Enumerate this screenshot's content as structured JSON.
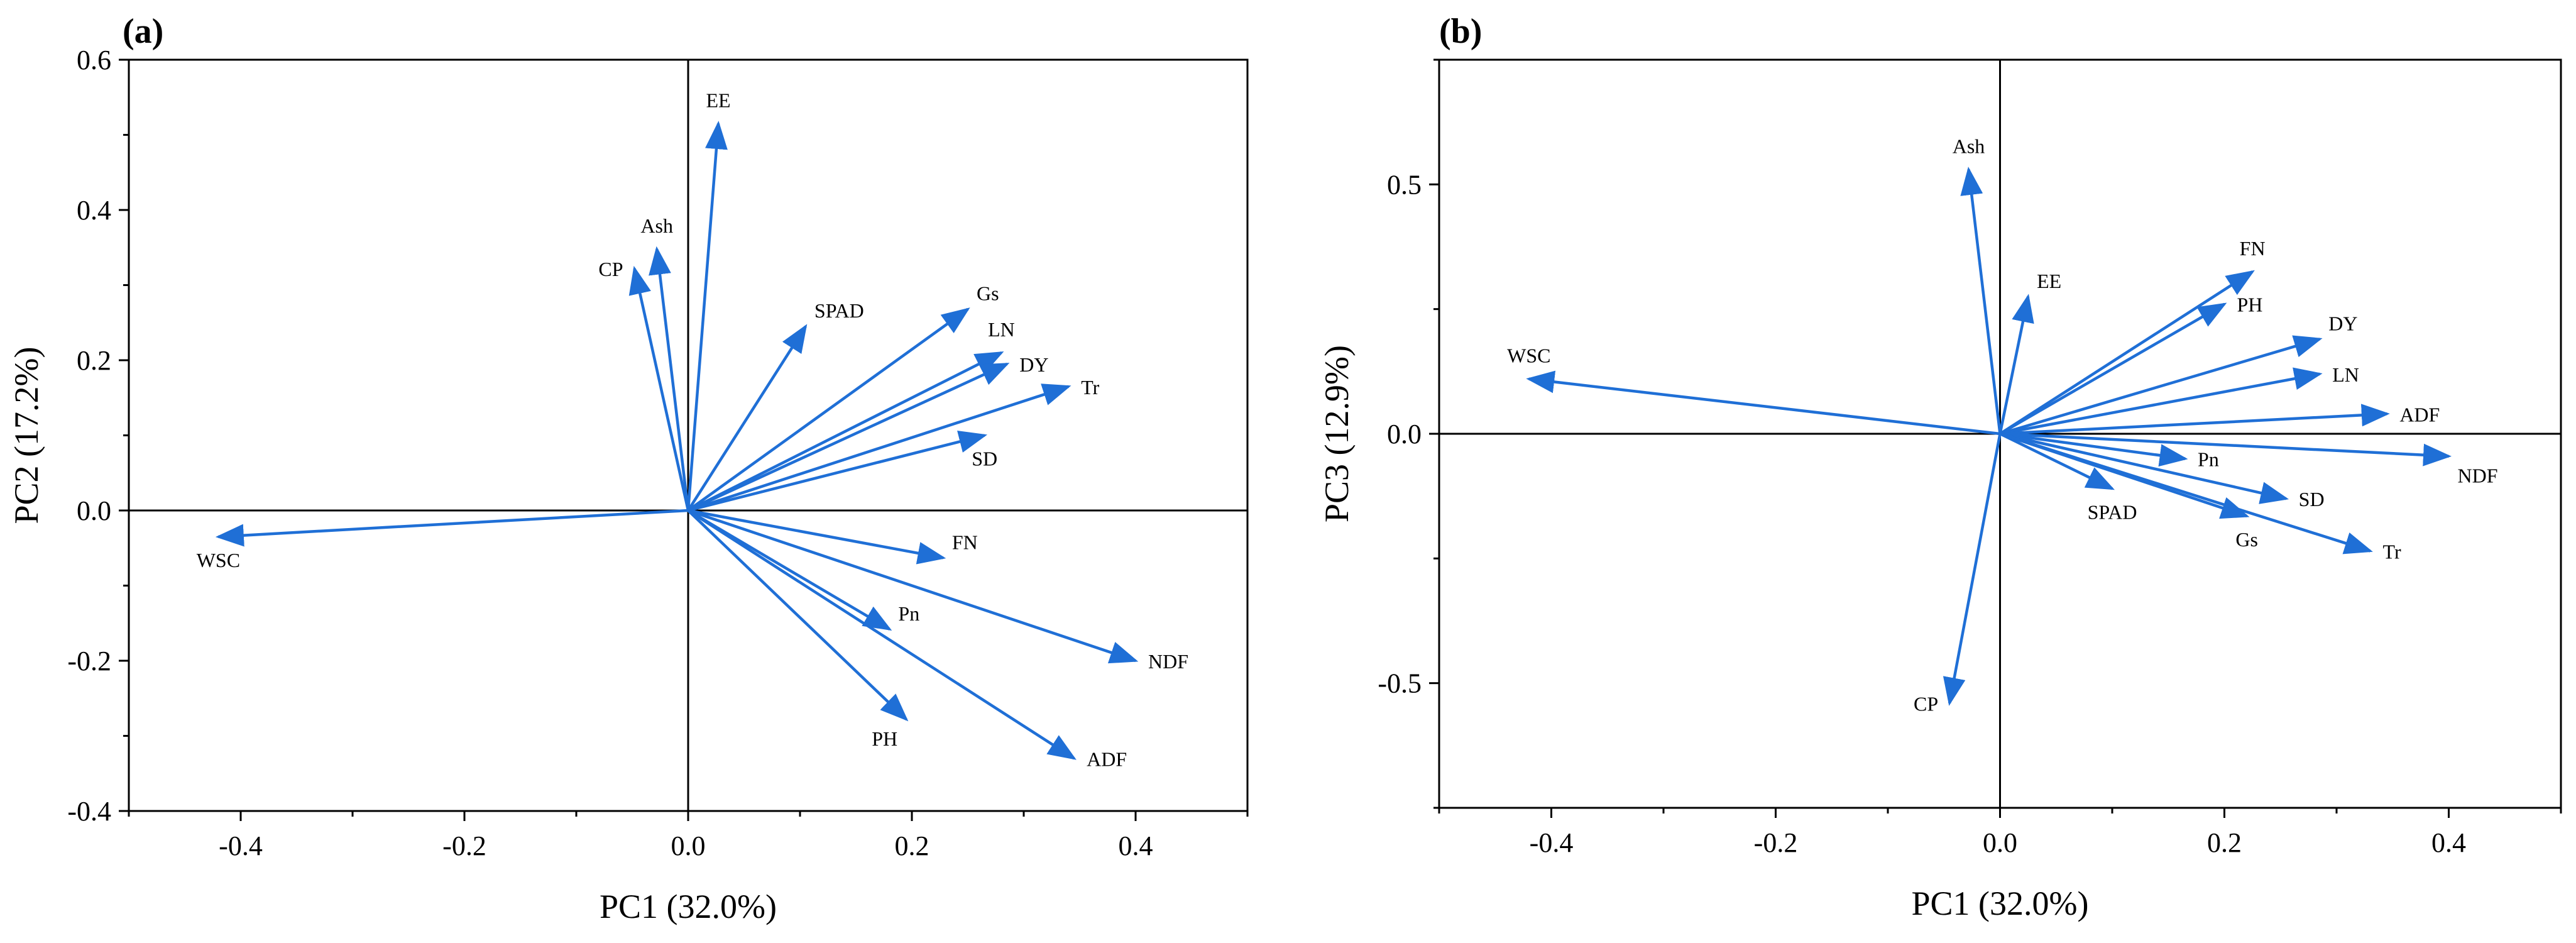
{
  "colors": {
    "arrow": "#1f6fd6",
    "axis": "#000000",
    "background": "#ffffff"
  },
  "chart_data": [
    {
      "type": "biplot",
      "panel_label": "(a)",
      "xlabel": "PC1 (32.0%)",
      "ylabel": "PC2 (17.2%)",
      "xlim": [
        -0.5,
        0.5
      ],
      "ylim": [
        -0.4,
        0.6
      ],
      "xticks": [
        -0.4,
        -0.2,
        0.0,
        0.2,
        0.4
      ],
      "xtick_labels": [
        "-0.4",
        "-0.2",
        "0.0",
        "0.2",
        "0.4"
      ],
      "yticks": [
        -0.4,
        -0.2,
        0.0,
        0.2,
        0.4,
        0.6
      ],
      "ytick_labels": [
        "-0.4",
        "-0.2",
        "0.0",
        "0.2",
        "0.4",
        "0.6"
      ],
      "vectors": [
        {
          "name": "EE",
          "x": 0.027,
          "y": 0.515,
          "label_pos": "above"
        },
        {
          "name": "Ash",
          "x": -0.028,
          "y": 0.348,
          "label_pos": "above"
        },
        {
          "name": "CP",
          "x": -0.048,
          "y": 0.322,
          "label_pos": "left"
        },
        {
          "name": "SPAD",
          "x": 0.105,
          "y": 0.245,
          "label_pos": "right-above"
        },
        {
          "name": "Gs",
          "x": 0.25,
          "y": 0.268,
          "label_pos": "right-above"
        },
        {
          "name": "LN",
          "x": 0.28,
          "y": 0.21,
          "label_pos": "above"
        },
        {
          "name": "DY",
          "x": 0.285,
          "y": 0.195,
          "label_pos": "right"
        },
        {
          "name": "Tr",
          "x": 0.34,
          "y": 0.165,
          "label_pos": "right"
        },
        {
          "name": "SD",
          "x": 0.265,
          "y": 0.1,
          "label_pos": "below"
        },
        {
          "name": "FN",
          "x": 0.228,
          "y": -0.063,
          "label_pos": "right-above"
        },
        {
          "name": "Pn",
          "x": 0.18,
          "y": -0.158,
          "label_pos": "right-above"
        },
        {
          "name": "NDF",
          "x": 0.4,
          "y": -0.2,
          "label_pos": "right"
        },
        {
          "name": "PH",
          "x": 0.195,
          "y": -0.278,
          "label_pos": "left-below"
        },
        {
          "name": "ADF",
          "x": 0.345,
          "y": -0.33,
          "label_pos": "right"
        },
        {
          "name": "WSC",
          "x": -0.42,
          "y": -0.035,
          "label_pos": "below"
        }
      ]
    },
    {
      "type": "biplot",
      "panel_label": "(b)",
      "xlabel": "PC1 (32.0%)",
      "ylabel": "PC3 (12.9%)",
      "xlim": [
        -0.5,
        0.5
      ],
      "ylim": [
        -0.75,
        0.75
      ],
      "xticks": [
        -0.4,
        -0.2,
        0.0,
        0.2,
        0.4
      ],
      "xtick_labels": [
        "-0.4",
        "-0.2",
        "0.0",
        "0.2",
        "0.4"
      ],
      "yticks": [
        -0.5,
        0.0,
        0.5
      ],
      "ytick_labels": [
        "-0.5",
        "0.0",
        "0.5"
      ],
      "vectors": [
        {
          "name": "Ash",
          "x": -0.028,
          "y": 0.53,
          "label_pos": "above"
        },
        {
          "name": "EE",
          "x": 0.025,
          "y": 0.275,
          "label_pos": "right-above"
        },
        {
          "name": "FN",
          "x": 0.225,
          "y": 0.325,
          "label_pos": "above"
        },
        {
          "name": "PH",
          "x": 0.2,
          "y": 0.26,
          "label_pos": "right"
        },
        {
          "name": "DY",
          "x": 0.285,
          "y": 0.19,
          "label_pos": "right-above"
        },
        {
          "name": "LN",
          "x": 0.285,
          "y": 0.12,
          "label_pos": "right"
        },
        {
          "name": "ADF",
          "x": 0.345,
          "y": 0.04,
          "label_pos": "right"
        },
        {
          "name": "Pn",
          "x": 0.165,
          "y": -0.05,
          "label_pos": "right"
        },
        {
          "name": "NDF",
          "x": 0.4,
          "y": -0.045,
          "label_pos": "right-below"
        },
        {
          "name": "SD",
          "x": 0.255,
          "y": -0.13,
          "label_pos": "right"
        },
        {
          "name": "SPAD",
          "x": 0.1,
          "y": -0.11,
          "label_pos": "below"
        },
        {
          "name": "Gs",
          "x": 0.22,
          "y": -0.165,
          "label_pos": "below"
        },
        {
          "name": "Tr",
          "x": 0.33,
          "y": -0.235,
          "label_pos": "right"
        },
        {
          "name": "CP",
          "x": -0.045,
          "y": -0.54,
          "label_pos": "left"
        },
        {
          "name": "WSC",
          "x": -0.42,
          "y": 0.11,
          "label_pos": "above"
        }
      ]
    }
  ]
}
